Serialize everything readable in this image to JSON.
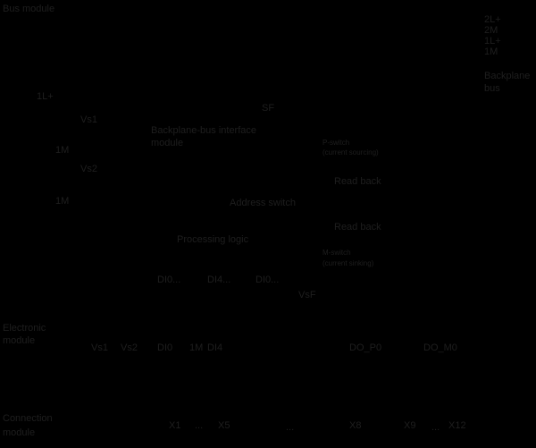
{
  "sections": {
    "bus_module": "Bus module",
    "electronic_module": [
      "Electronic",
      "module"
    ],
    "connection_module": [
      "Connection",
      "module"
    ]
  },
  "bus_lines": [
    "2L+",
    "2M",
    "1L+",
    "1M"
  ],
  "backplane_bus": [
    "Backplane",
    "bus"
  ],
  "supply": {
    "l1": "1L+",
    "vs1": "Vs1",
    "m1a": "1M",
    "vs2": "Vs2",
    "m1b": "1M"
  },
  "blocks": {
    "sf": "SF",
    "interface": [
      "Backplane-bus interface",
      "module"
    ],
    "address": "Address switch",
    "logic": "Processing logic",
    "vsf": "VsF"
  },
  "outputs": {
    "p_switch": [
      "P-switch",
      "(current sourcing)"
    ],
    "read_back_1": "Read back",
    "read_back_2": "Read back",
    "m_switch": [
      "M-switch",
      "(current sinking)"
    ]
  },
  "di_groups": [
    "DI0...",
    "DI4...",
    "DI0..."
  ],
  "terminals": [
    "Vs1",
    "Vs2",
    "DI0",
    "1M",
    "DI4",
    "DO_P0",
    "DO_M0"
  ],
  "connectors": [
    "X1",
    "...",
    "X5",
    "...",
    "X8",
    "X9",
    "...",
    "X12"
  ]
}
